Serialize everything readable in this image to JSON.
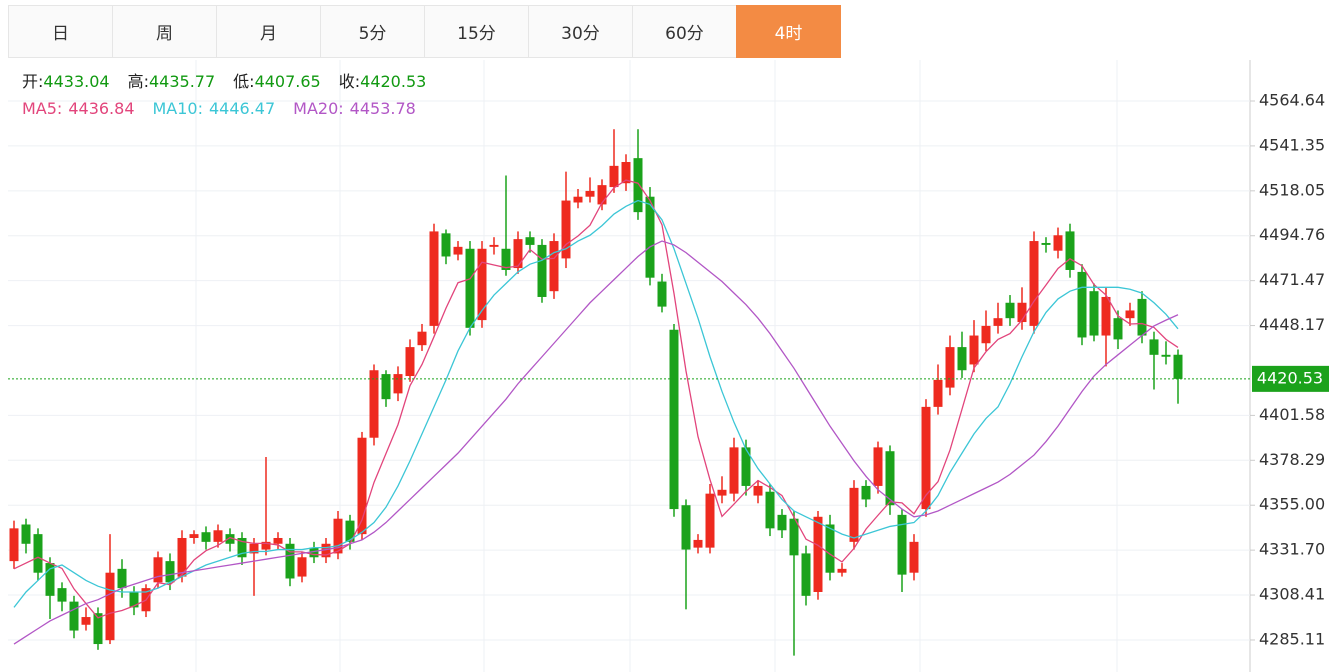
{
  "tabs": [
    "日",
    "周",
    "月",
    "5分",
    "15分",
    "30分",
    "60分",
    "4时"
  ],
  "active_tab": 7,
  "chart_data": {
    "type": "candlestick",
    "ohlc_labels": [
      "开:",
      "高:",
      "低:",
      "收:"
    ],
    "up_color": "#ee2a1f",
    "down_color": "#1ba21b",
    "info_color": "#119911",
    "ylim": [
      4268.5,
      4585.9
    ],
    "yticks": [
      4564.64,
      4541.35,
      4518.05,
      4494.76,
      4471.47,
      4448.17,
      4401.58,
      4378.29,
      {
        "value": 4355,
        "label": "4355.00"
      },
      {
        "value": 4331.7,
        "label": "4331.70"
      },
      4308.41,
      4285.11
    ],
    "grid": true,
    "open": [
      4326,
      4345,
      4340,
      4325,
      4312,
      4305,
      4293,
      4299,
      4285,
      4322,
      4310,
      4300,
      4315,
      4326,
      4318,
      4338,
      4341,
      4336,
      4340,
      4338,
      4330,
      4332,
      4335,
      4335,
      4318,
      4333,
      4328,
      4330,
      4347,
      4340,
      4390,
      4423,
      4413,
      4422,
      4438,
      4448,
      4496,
      4485,
      4488,
      4451,
      4489,
      4488,
      4478,
      4494,
      4490,
      4466,
      4483,
      4512,
      4515,
      4511,
      4520,
      4522,
      4535,
      4515,
      4471,
      4446,
      4355,
      4333,
      4333,
      4360,
      4361,
      4385,
      4360,
      4362,
      4350,
      4348,
      4330,
      4310,
      4345,
      4320,
      4336,
      4365,
      4365,
      4383,
      4350,
      4320,
      4353,
      4406,
      4416,
      4437,
      4428,
      4439,
      4448,
      4460,
      4450,
      4448,
      4491,
      4487,
      4497,
      4476,
      4466,
      4443,
      4452,
      4452,
      4462,
      4441,
      4433,
      4433.04
    ],
    "high": [
      4347,
      4348,
      4343,
      4328,
      4315,
      4308,
      4302,
      4302,
      4340,
      4327,
      4313,
      4314,
      4331,
      4330,
      4342,
      4342,
      4344,
      4345,
      4343,
      4341,
      4338,
      4380,
      4341,
      4338,
      4331,
      4336,
      4338,
      4352,
      4350,
      4393,
      4428,
      4425,
      4427,
      4441,
      4449,
      4501,
      4498,
      4492,
      4492,
      4492,
      4494,
      4526,
      4497,
      4497,
      4493,
      4496,
      4528,
      4519,
      4525,
      4524,
      4550,
      4537,
      4550,
      4520,
      4475,
      4449,
      4358,
      4340,
      4366,
      4370,
      4390,
      4389,
      4368,
      4366,
      4353,
      4352,
      4334,
      4352,
      4350,
      4325,
      4368,
      4368,
      4388,
      4386,
      4353,
      4340,
      4410,
      4428,
      4443,
      4445,
      4451,
      4456,
      4460,
      4464,
      4468,
      4497,
      4494,
      4499,
      4501,
      4480,
      4470,
      4468,
      4456,
      4460,
      4466,
      4445,
      4440,
      4435.77
    ],
    "low": [
      4322,
      4330,
      4316,
      4296,
      4300,
      4286,
      4290,
      4280,
      4283,
      4307,
      4298,
      4297,
      4312,
      4311,
      4315,
      4335,
      4332,
      4333,
      4331,
      4324,
      4308,
      4329,
      4332,
      4313,
      4315,
      4325,
      4325,
      4327,
      4332,
      4337,
      4386,
      4406,
      4409,
      4419,
      4435,
      4444,
      4480,
      4482,
      4443,
      4447,
      4485,
      4474,
      4475,
      4486,
      4460,
      4462,
      4478,
      4509,
      4512,
      4508,
      4517,
      4518,
      4503,
      4469,
      4455,
      4349,
      4301,
      4330,
      4330,
      4356,
      4357,
      4360,
      4356,
      4339,
      4338,
      4277,
      4303,
      4306,
      4316,
      4318,
      4332,
      4354,
      4361,
      4350,
      4310,
      4316,
      4349,
      4402,
      4412,
      4421,
      4424,
      4435,
      4444,
      4448,
      4446,
      4444,
      4486,
      4483,
      4473,
      4438,
      4440,
      4427,
      4436,
      4448,
      4439,
      4415,
      4428,
      4407.65
    ],
    "close": [
      4343,
      4335,
      4320,
      4308,
      4305,
      4290,
      4297,
      4283,
      4320,
      4312,
      4302,
      4312,
      4328,
      4315,
      4338,
      4340,
      4336,
      4342,
      4335,
      4328,
      4335,
      4336,
      4338,
      4317,
      4328,
      4328,
      4335,
      4348,
      4336,
      4390,
      4425,
      4410,
      4423,
      4437,
      4445,
      4497,
      4484,
      4489,
      4447,
      4488,
      4490,
      4477,
      4493,
      4490,
      4463,
      4492,
      4513,
      4515,
      4518,
      4521,
      4531,
      4533,
      4507,
      4473,
      4458,
      4353,
      4332,
      4337,
      4361,
      4363,
      4385,
      4365,
      4365,
      4343,
      4342,
      4329,
      4308,
      4349,
      4320,
      4322,
      4364,
      4358,
      4385,
      4355,
      4319,
      4336,
      4406,
      4420,
      4437,
      4425,
      4443,
      4448,
      4452,
      4452,
      4460,
      4492,
      4490,
      4495,
      4477,
      4442,
      4443,
      4463,
      4441,
      4456,
      4443,
      4433,
      4432,
      4420.53
    ],
    "series": [
      {
        "name": "MA5:",
        "color": "#e2457c",
        "values": [
          4322,
          4325,
          4328,
          4325,
          4322.2,
          4311.6,
          4304,
          4296.6,
          4299,
          4300.4,
          4302.8,
          4305.8,
          4314.8,
          4313.8,
          4319,
          4326.6,
          4331.4,
          4334.2,
          4338.2,
          4336.2,
          4335.2,
          4335.2,
          4334.4,
          4330.8,
          4330.8,
          4329.4,
          4329.2,
          4331.2,
          4335,
          4347.4,
          4366.8,
          4381.8,
          4396.8,
          4417,
          4428,
          4442.4,
          4457.2,
          4470.4,
          4472.4,
          4481,
          4479.6,
          4478.2,
          4479,
          4487.6,
          4482.6,
          4483,
          4490.2,
          4494.6,
          4500.2,
          4511.8,
          4519.6,
          4523.6,
          4522,
          4513,
          4500.4,
          4464.8,
          4424.6,
          4390.6,
          4368.2,
          4349.2,
          4355.6,
          4362.2,
          4367.8,
          4364.2,
          4360,
          4348.8,
          4337.4,
          4334.2,
          4329.6,
          4325.6,
          4332.6,
          4342.6,
          4349.8,
          4356.8,
          4356.2,
          4350.6,
          4360.2,
          4367.2,
          4383.6,
          4404.8,
          4426.2,
          4434.6,
          4441,
          4444,
          4451,
          4460.8,
          4469.2,
          4477.8,
          4482.8,
          4479.2,
          4469.4,
          4464,
          4453.2,
          4449,
          4449.2,
          4447.2,
          4441,
          4436.84
        ]
      },
      {
        "name": "MA10:",
        "color": "#3cc6d6",
        "values": [
          4302,
          4310,
          4316,
          4322,
          4324,
          4320,
          4316,
          4313,
          4311,
          4310,
          4310,
          4310,
          4312,
          4315,
          4318,
          4321,
          4324,
          4326,
          4328,
          4330,
          4331,
          4331,
          4332,
          4332,
          4332,
          4333,
          4333,
          4334,
          4337,
          4341,
          4346,
          4354,
          4365,
          4378,
          4392,
          4406,
          4420,
          4435,
          4447,
          4456,
          4464,
          4470,
          4476,
          4480,
          4482,
          4486,
          4488,
          4492,
          4495,
          4500,
          4506,
          4510,
          4513,
          4511,
          4503,
          4488,
          4470,
          4452,
          4432,
          4414,
          4398,
          4384,
          4374,
          4366,
          4358,
          4352,
          4349,
          4346,
          4343,
          4340,
          4338,
          4340,
          4342,
          4344,
          4345,
          4346,
          4352,
          4360,
          4372,
          4382,
          4392,
          4400,
          4406,
          4418,
          4432,
          4445,
          4455,
          4462,
          4466,
          4468,
          4468,
          4468,
          4468,
          4467,
          4465,
          4460,
          4454,
          4446.47
        ]
      },
      {
        "name": "MA20:",
        "color": "#b257c6",
        "values": [
          4283,
          4287,
          4291,
          4295,
          4298,
          4301,
          4304,
          4306,
          4309,
          4312,
          4314,
          4316,
          4318,
          4319,
          4320,
          4321,
          4322,
          4323,
          4324,
          4325,
          4326,
          4327,
          4328,
          4329,
          4330,
          4331,
          4332,
          4333,
          4335,
          4337,
          4341,
          4346,
          4352,
          4358,
          4364,
          4370,
          4376,
          4382,
          4389,
          4396,
          4403,
          4410,
          4418,
          4425,
          4432,
          4439,
          4446,
          4453,
          4460,
          4466,
          4472,
          4478,
          4484,
          4489,
          4492,
          4490,
          4486,
          4481,
          4476,
          4471,
          4465,
          4459,
          4452,
          4444,
          4435,
          4426,
          4416,
          4406,
          4396,
          4387,
          4378,
          4370,
          4363,
          4358,
          4353,
          4349,
          4350,
          4352,
          4355,
          4358,
          4361,
          4364,
          4367,
          4371,
          4376,
          4381,
          4388,
          4396,
          4405,
          4414,
          4422,
          4428,
          4433,
          4438,
          4443,
          4448,
          4451,
          4453.78
        ]
      }
    ]
  }
}
